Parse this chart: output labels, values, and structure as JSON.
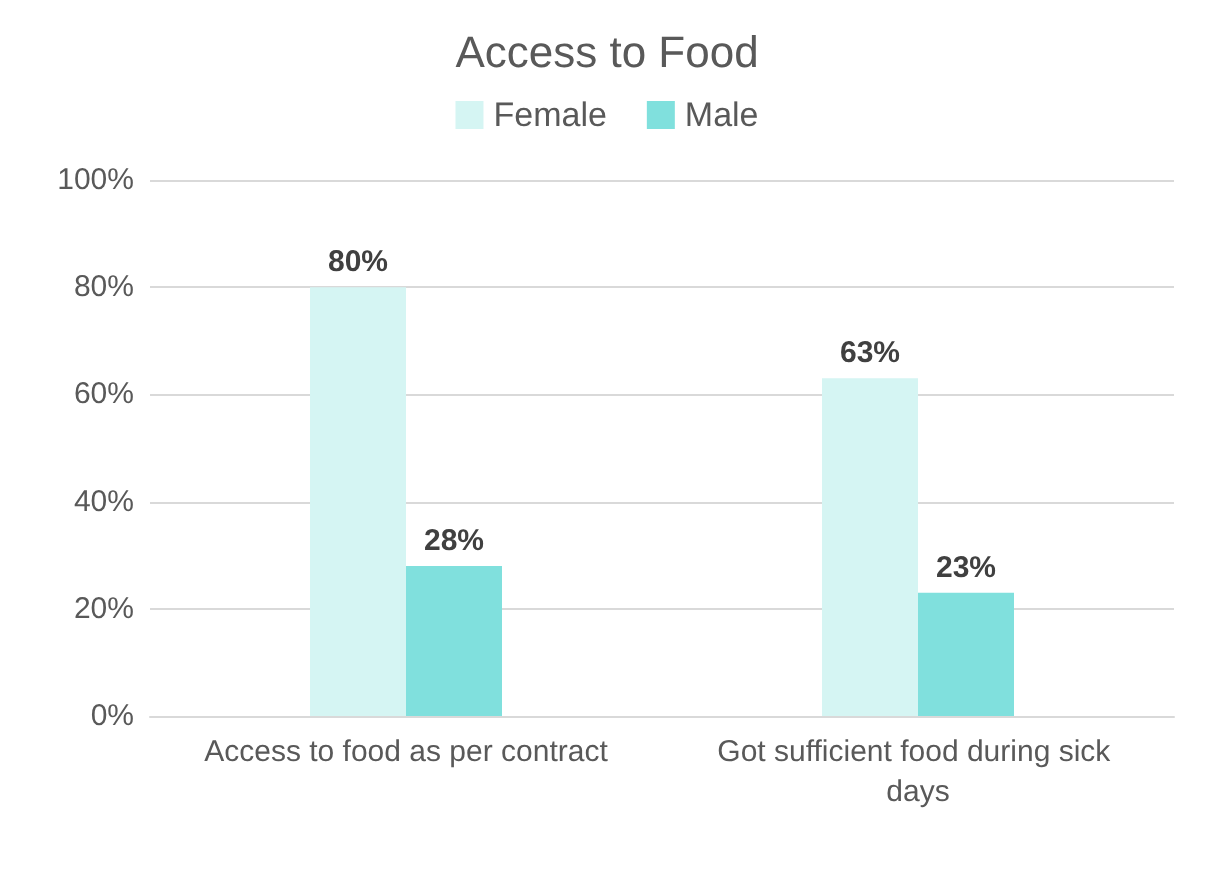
{
  "chart_data": {
    "type": "bar",
    "title": "Access to Food",
    "categories": [
      "Access to food as per contract",
      "Got sufficient food during sick days"
    ],
    "series": [
      {
        "name": "Female",
        "color": "#d5f5f3",
        "values": [
          80,
          63
        ],
        "value_labels": [
          "80%",
          "63%"
        ]
      },
      {
        "name": "Male",
        "color": "#80e0dd",
        "values": [
          28,
          23
        ],
        "value_labels": [
          "28%",
          "23%"
        ]
      }
    ],
    "ylim": [
      0,
      100
    ],
    "yticks": [
      {
        "value": 0,
        "label": "0%"
      },
      {
        "value": 20,
        "label": "20%"
      },
      {
        "value": 40,
        "label": "40%"
      },
      {
        "value": 60,
        "label": "60%"
      },
      {
        "value": 80,
        "label": "80%"
      },
      {
        "value": 100,
        "label": "100%"
      }
    ],
    "grid": "y",
    "legend": "top"
  }
}
